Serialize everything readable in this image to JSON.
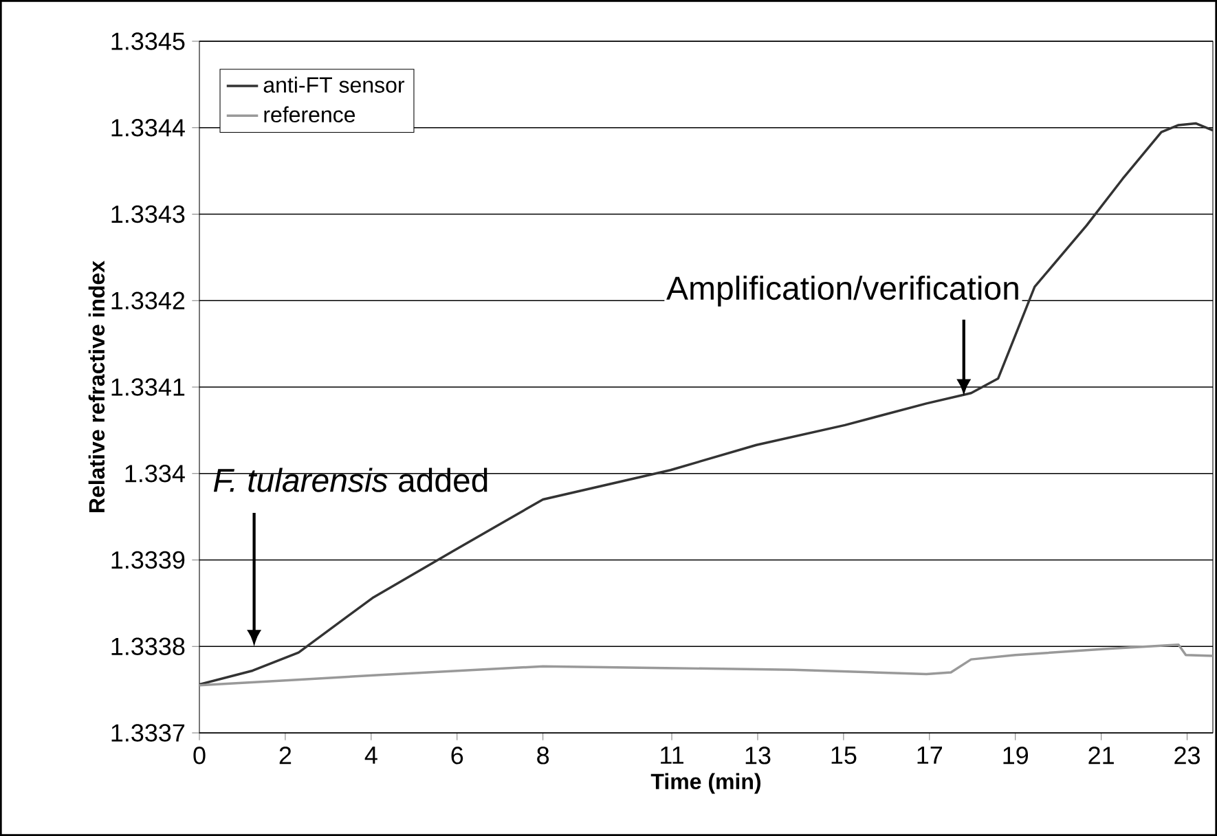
{
  "chart_data": {
    "type": "line",
    "xlabel": "Time (min)",
    "ylabel": "Relative refractive index",
    "xlim": [
      0,
      23.6
    ],
    "ylim": [
      1.3337,
      1.3345
    ],
    "xticks": [
      0,
      2,
      4,
      6,
      8,
      11,
      13,
      15,
      17,
      19,
      21,
      23
    ],
    "yticks": [
      1.3337,
      1.3338,
      1.3339,
      1.334,
      1.3341,
      1.3342,
      1.3343,
      1.3344,
      1.3345
    ],
    "grid": "y",
    "legend": "top left",
    "marker": "none",
    "line_style": "solid",
    "series": [
      {
        "name": "anti-FT sensor",
        "color": "#333333",
        "x": [
          0,
          1.24,
          2.31,
          4.03,
          5.93,
          8.0,
          10.97,
          12.97,
          15.03,
          16.93,
          17.97,
          18.6,
          19.45,
          20.66,
          21.5,
          22.4,
          22.8,
          23.2,
          23.6
        ],
        "values": [
          1.333756,
          1.333772,
          1.333793,
          1.333856,
          1.333911,
          1.33397,
          1.334004,
          1.334033,
          1.334056,
          1.334081,
          1.334093,
          1.33411,
          1.334216,
          1.334287,
          1.334341,
          1.334395,
          1.334403,
          1.334405,
          1.334397
        ]
      },
      {
        "name": "reference",
        "color": "#999999",
        "x": [
          0,
          2.14,
          4.2,
          8.0,
          10.85,
          13.83,
          16.93,
          17.5,
          17.97,
          19.0,
          21.07,
          22.8,
          22.97,
          23.6
        ],
        "values": [
          1.333755,
          1.333761,
          1.333767,
          1.333777,
          1.333775,
          1.333773,
          1.333768,
          1.33377,
          1.333785,
          1.33379,
          1.333797,
          1.333802,
          1.33379,
          1.333789
        ]
      }
    ],
    "annotations": [
      "*F. tularensis* added",
      {
        "text": "Amplification/verification",
        "x": 17.8,
        "y": 1.33409
      }
    ]
  }
}
